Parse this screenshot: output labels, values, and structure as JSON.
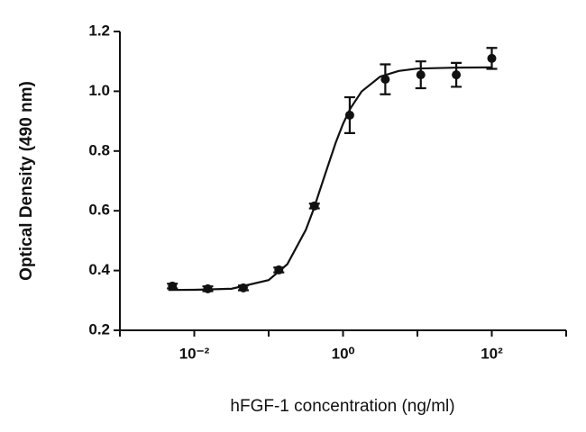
{
  "chart_data": {
    "type": "scatter",
    "x_label": "hFGF-1 concentration (ng/ml)",
    "y_label": "Optical Density (490 nm)",
    "xscale": "log",
    "xlim": [
      0.001,
      1000
    ],
    "xticks": [
      {
        "value": 0.01,
        "label": "10⁻²"
      },
      {
        "value": 1,
        "label": "10⁰"
      },
      {
        "value": 100,
        "label": "10²"
      }
    ],
    "minor_xticks": [
      0.001,
      0.1,
      10,
      1000
    ],
    "ylim": [
      0.2,
      1.2
    ],
    "yticks": [
      0.2,
      0.4,
      0.6,
      0.8,
      {
        "value": 1,
        "label": "1.0"
      },
      1.2
    ],
    "color": "#111111",
    "series": [
      {
        "x": [
          0.00508,
          0.0152,
          0.0457,
          0.137,
          0.412,
          1.23,
          3.7,
          11.1,
          33.3,
          100
        ],
        "values": [
          0.348,
          0.339,
          0.342,
          0.402,
          0.616,
          0.92,
          1.04,
          1.055,
          1.055,
          1.11
        ],
        "errors": [
          0.008,
          0.008,
          0.008,
          0.008,
          0.008,
          0.06,
          0.05,
          0.045,
          0.04,
          0.035
        ]
      }
    ],
    "fit": {
      "x": [
        0.00447,
        0.01,
        0.0316,
        0.1,
        0.178,
        0.316,
        0.398,
        0.562,
        0.794,
        1,
        1.26,
        1.78,
        3.16,
        5.62,
        10,
        31.6,
        100
      ],
      "values": [
        0.335,
        0.3356,
        0.339,
        0.368,
        0.421,
        0.536,
        0.602,
        0.715,
        0.827,
        0.891,
        0.943,
        0.9995,
        1.049,
        1.068,
        1.076,
        1.079,
        1.08
      ]
    }
  }
}
